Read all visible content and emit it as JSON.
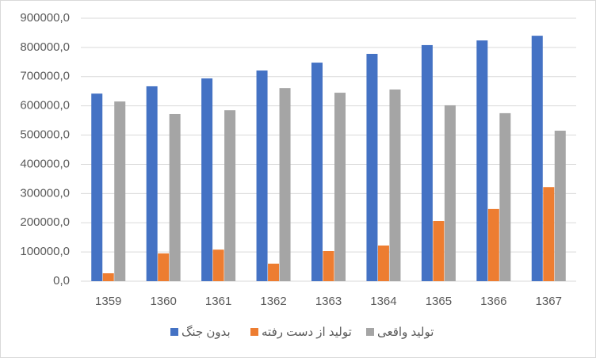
{
  "chart_data": {
    "type": "bar",
    "categories": [
      "1359",
      "1360",
      "1361",
      "1362",
      "1363",
      "1364",
      "1365",
      "1366",
      "1367"
    ],
    "series": [
      {
        "name": "بدون جنگ",
        "color": "#4472c4",
        "values": [
          642000,
          667000,
          694000,
          721000,
          748000,
          778000,
          808000,
          824000,
          840000
        ]
      },
      {
        "name": "تولید از دست رفته",
        "color": "#ed7d31",
        "values": [
          27000,
          95000,
          108000,
          60000,
          103000,
          122000,
          206000,
          247000,
          322000
        ]
      },
      {
        "name": "تولید واقعی",
        "color": "#a5a5a5",
        "values": [
          615000,
          572000,
          585000,
          661000,
          645000,
          656000,
          602000,
          575000,
          515000
        ]
      }
    ],
    "ylim": [
      0,
      900000
    ],
    "yticks": [
      {
        "value": 0,
        "label": "0,0"
      },
      {
        "value": 100000,
        "label": "100000,0"
      },
      {
        "value": 200000,
        "label": "200000,0"
      },
      {
        "value": 300000,
        "label": "300000,0"
      },
      {
        "value": 400000,
        "label": "400000,0"
      },
      {
        "value": 500000,
        "label": "500000,0"
      },
      {
        "value": 600000,
        "label": "600000,0"
      },
      {
        "value": 700000,
        "label": "700000,0"
      },
      {
        "value": 800000,
        "label": "800000,0"
      },
      {
        "value": 900000,
        "label": "900000,0"
      }
    ],
    "grid": true,
    "legend": "bottom"
  }
}
